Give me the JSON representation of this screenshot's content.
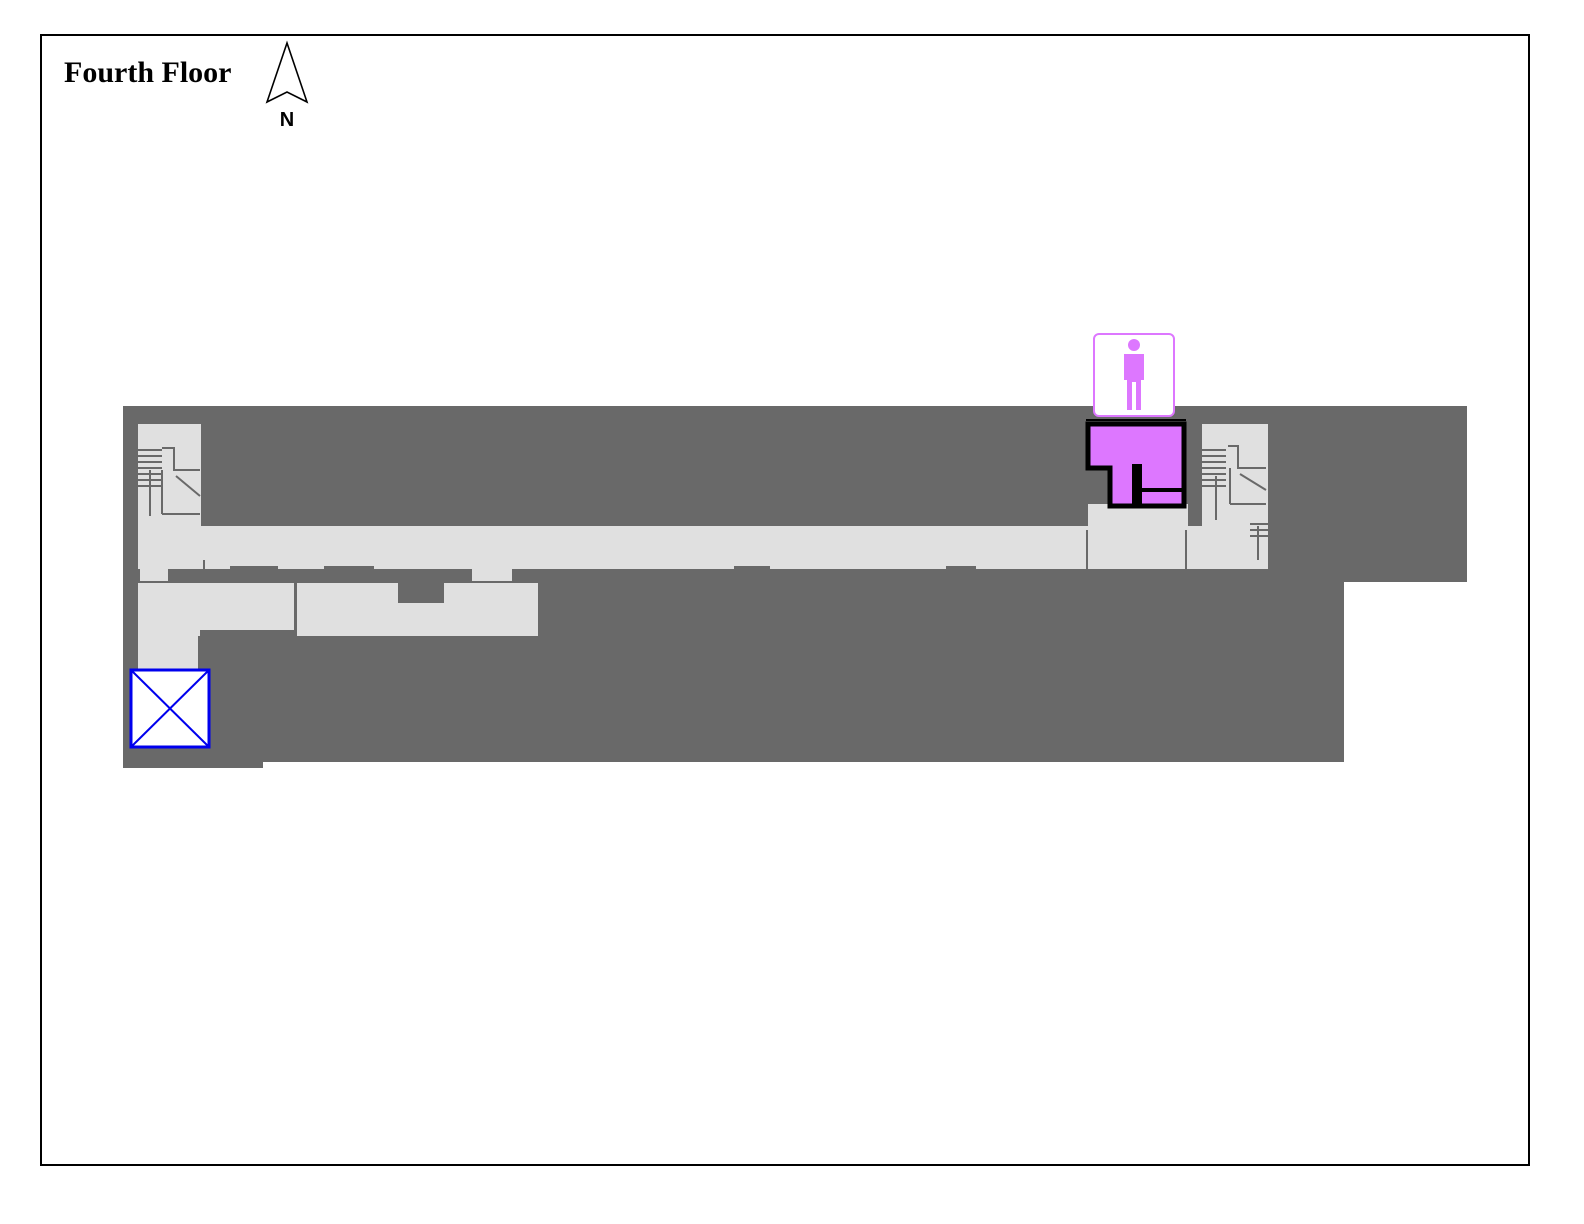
{
  "map": {
    "title": "Fourth Floor",
    "north_label": "N"
  },
  "colors": {
    "building": "#696969",
    "corridor": "#e0e0e0",
    "restroom_fill": "#dd77ff",
    "restroom_outline": "#dd77ff",
    "elevator": "#0000ee",
    "frame": "#000000"
  },
  "icons": {
    "restroom": "mens-restroom-icon",
    "elevator": "elevator-icon",
    "north": "north-arrow-icon",
    "stairs": "stairs-icon"
  }
}
